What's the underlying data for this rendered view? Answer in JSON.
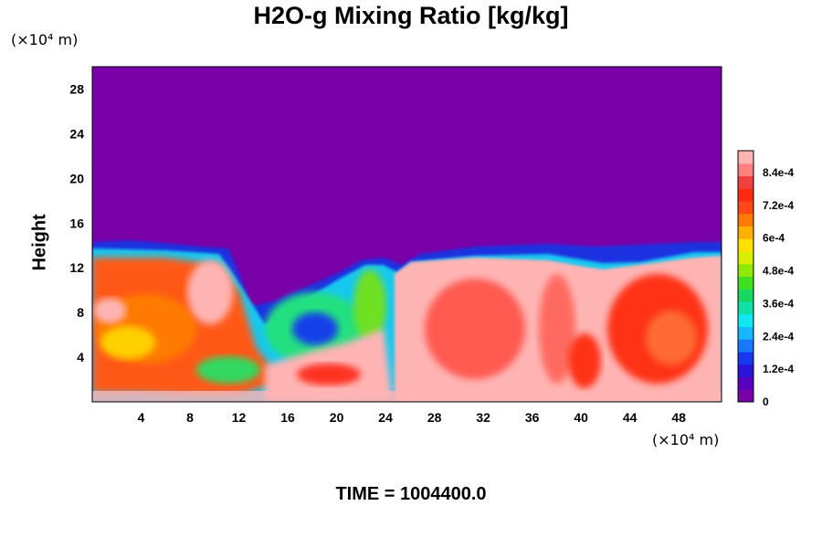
{
  "chart_data": {
    "type": "heatmap",
    "title": "H2O-g Mixing Ratio [kg/kg]",
    "ylabel": "Height",
    "xlabel": "",
    "x_unit": "(×10⁴ m)",
    "y_unit": "(×10⁴ m)",
    "xlim": [
      0,
      51.5
    ],
    "ylim": [
      0,
      30
    ],
    "x_ticks": [
      4,
      8,
      12,
      16,
      20,
      24,
      28,
      32,
      36,
      40,
      44,
      48
    ],
    "y_ticks": [
      4,
      8,
      12,
      16,
      20,
      24,
      28
    ],
    "x_tick_labels": [
      "4",
      "8",
      "12",
      "16",
      "20",
      "24",
      "28",
      "32",
      "36",
      "40",
      "44",
      "48"
    ],
    "y_tick_labels": [
      "4",
      "8",
      "12",
      "16",
      "20",
      "24",
      "28"
    ],
    "colorbar": {
      "min": 0,
      "max": 0.00092,
      "tick_labels": [
        "0",
        "1.2e-4",
        "2.4e-4",
        "3.6e-4",
        "4.8e-4",
        "6e-4",
        "7.2e-4",
        "8.4e-4"
      ],
      "tick_values": [
        0,
        0.00012,
        0.00024,
        0.00036,
        0.00048,
        0.0006,
        0.00072,
        0.00084
      ],
      "colors": [
        "#7a00a8",
        "#5a00c0",
        "#2a14d8",
        "#1838f0",
        "#1878ff",
        "#18b8ff",
        "#10e8f0",
        "#10e0a8",
        "#18d860",
        "#40e020",
        "#90e800",
        "#d8f000",
        "#ffe000",
        "#ffb000",
        "#ff7a00",
        "#ff4818",
        "#ff2a10",
        "#f04040",
        "#ff8080",
        "#ffb4b4"
      ]
    },
    "grid": false
  },
  "footer": {
    "time_label": "TIME = 1004400.0"
  }
}
